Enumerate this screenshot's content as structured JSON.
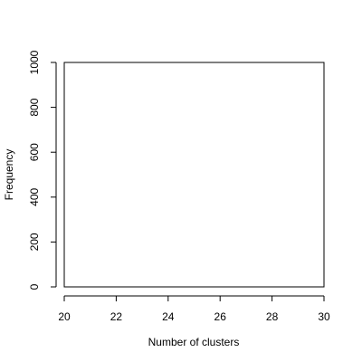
{
  "chart_data": {
    "type": "bar",
    "title": "",
    "xlabel": "Number of clusters",
    "ylabel": "Frequency",
    "xlim": [
      20,
      30
    ],
    "ylim": [
      0,
      1000
    ],
    "x_ticks": [
      "20",
      "22",
      "24",
      "26",
      "28",
      "30"
    ],
    "y_ticks": [
      "0",
      "200",
      "400",
      "600",
      "800",
      "1000"
    ],
    "categories": [],
    "values": [],
    "grid": false,
    "legend": "none",
    "colors": {
      "axis": "#000000",
      "frame": "#000000",
      "background": "#ffffff"
    }
  }
}
